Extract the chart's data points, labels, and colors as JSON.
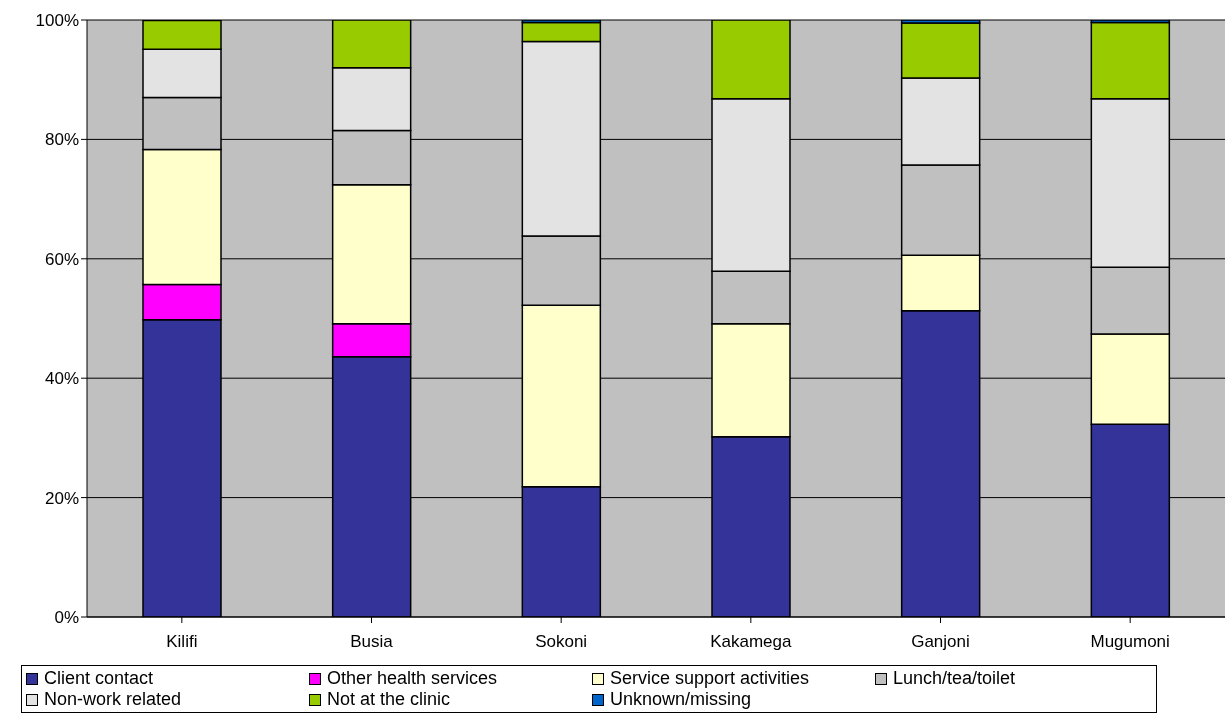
{
  "chart_data": {
    "type": "bar",
    "stacked": true,
    "categories": [
      "Kilifi",
      "Busia",
      "Sokoni",
      "Kakamega",
      "Ganjoni",
      "Mugumoni"
    ],
    "series": [
      {
        "name": "Client contact",
        "color": "#333399",
        "values": [
          49.8,
          43.6,
          21.8,
          30.2,
          51.3,
          32.3
        ]
      },
      {
        "name": "Other health services",
        "color": "#ff00ff",
        "values": [
          5.9,
          5.5,
          0,
          0,
          0,
          0
        ]
      },
      {
        "name": "Service support activities",
        "color": "#ffffcc",
        "values": [
          22.6,
          23.3,
          30.4,
          18.9,
          9.3,
          15.1
        ]
      },
      {
        "name": "Lunch/tea/toilet",
        "color": "#c0c0c0",
        "values": [
          8.7,
          9.1,
          11.6,
          8.8,
          15.1,
          11.2
        ]
      },
      {
        "name": "Non-work related",
        "color": "#e3e3e3",
        "values": [
          8.1,
          10.5,
          32.6,
          28.9,
          14.6,
          28.2
        ]
      },
      {
        "name": "Not at the clinic",
        "color": "#99cc00",
        "values": [
          4.8,
          8.0,
          3.2,
          13.2,
          9.2,
          12.8
        ]
      },
      {
        "name": "Unknown/missing",
        "color": "#0066cc",
        "values": [
          0,
          0,
          0.4,
          0,
          0.5,
          0.4
        ]
      }
    ],
    "ylim": [
      0,
      100
    ],
    "yticks": [
      {
        "value": 0,
        "label": "0%"
      },
      {
        "value": 20,
        "label": "20%"
      },
      {
        "value": 40,
        "label": "40%"
      },
      {
        "value": 60,
        "label": "60%"
      },
      {
        "value": 80,
        "label": "80%"
      },
      {
        "value": 100,
        "label": "100%"
      }
    ],
    "grid": "y",
    "legend": "bottom"
  }
}
